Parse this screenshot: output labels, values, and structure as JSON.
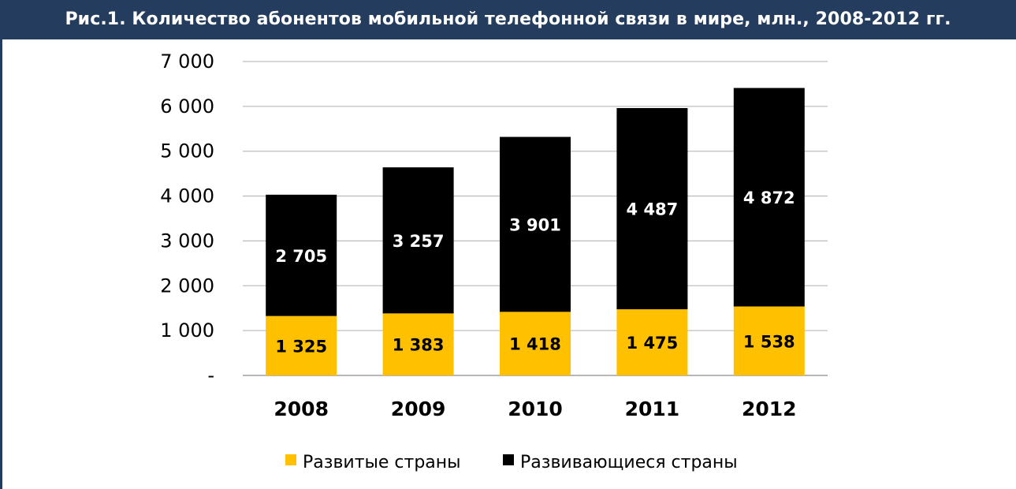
{
  "colors": {
    "title_bg": "#243d5e",
    "developed": "#ffc000",
    "developing": "#000000",
    "grid": "#bfbfbf"
  },
  "chart_data": {
    "type": "bar",
    "stacked": true,
    "title": "Рис.1. Количество абонентов мобильной телефонной связи в мире, млн., 2008-2012 гг.",
    "categories": [
      "2008",
      "2009",
      "2010",
      "2011",
      "2012"
    ],
    "series": [
      {
        "name": "Развитые страны",
        "color": "#ffc000",
        "label_color": "#000000",
        "values": [
          1325,
          1383,
          1418,
          1475,
          1538
        ],
        "labels": [
          "1 325",
          "1 383",
          "1 418",
          "1 475",
          "1 538"
        ]
      },
      {
        "name": "Развивающиеся страны",
        "color": "#000000",
        "label_color": "#ffffff",
        "values": [
          2705,
          3257,
          3901,
          4487,
          4872
        ],
        "labels": [
          "2 705",
          "3 257",
          "3 901",
          "4 487",
          "4 872"
        ]
      }
    ],
    "ylim": [
      0,
      7000
    ],
    "yticks": [
      0,
      1000,
      2000,
      3000,
      4000,
      5000,
      6000,
      7000
    ],
    "ytick_labels": [
      "-",
      "1 000",
      "2 000",
      "3 000",
      "4 000",
      "5 000",
      "6 000",
      "7 000"
    ],
    "grid": true,
    "legend_position": "bottom"
  }
}
